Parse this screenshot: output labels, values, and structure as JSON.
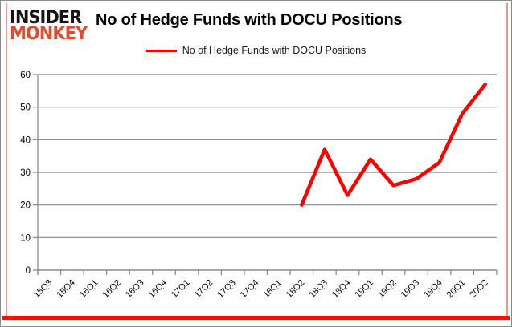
{
  "header": {
    "logo_line1": "INSIDER",
    "logo_line2": "MONKEY",
    "title": "No of Hedge Funds with DOCU Positions"
  },
  "legend": {
    "label": "No of Hedge Funds with DOCU Positions",
    "line_color": "#fe0000"
  },
  "chart_data": {
    "type": "line",
    "title": "No of Hedge Funds with DOCU Positions",
    "categories": [
      "15Q3",
      "15Q4",
      "16Q1",
      "16Q2",
      "16Q3",
      "16Q4",
      "17Q1",
      "17Q2",
      "17Q3",
      "17Q4",
      "18Q1",
      "18Q2",
      "18Q3",
      "18Q4",
      "19Q1",
      "19Q2",
      "19Q3",
      "19Q4",
      "20Q1",
      "20Q2"
    ],
    "series": [
      {
        "name": "No of Hedge Funds with DOCU Positions",
        "color": "#fe0000",
        "values": [
          null,
          null,
          null,
          null,
          null,
          null,
          null,
          null,
          null,
          null,
          null,
          20,
          37,
          23,
          34,
          26,
          28,
          33,
          48,
          57
        ]
      }
    ],
    "xlabel": "",
    "ylabel": "",
    "ylim": [
      0,
      60
    ],
    "y_ticks": [
      0,
      10,
      20,
      30,
      40,
      50,
      60
    ],
    "grid": true,
    "legend_position": "top-center",
    "gridline_color": "#848484",
    "axis_color": "#848484",
    "tick_label_color": "#000000"
  },
  "colors": {
    "frame_pink": "#f0a09b",
    "frame_red": "#fb0f00",
    "outer_border": "#8a8a8a",
    "logo_black": "#141414",
    "logo_red": "#e8492b"
  }
}
